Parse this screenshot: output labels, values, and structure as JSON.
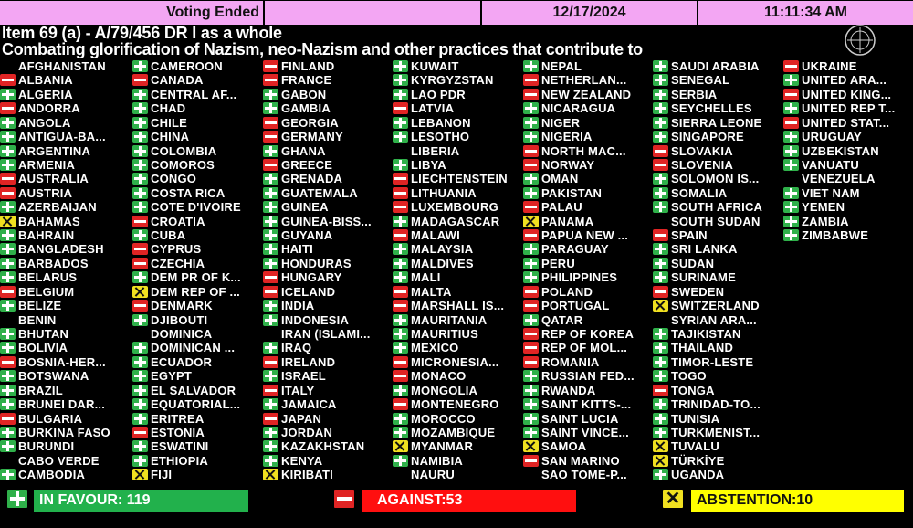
{
  "header": {
    "status": "Voting Ended",
    "empty": "",
    "date": "12/17/2024",
    "time": "11:11:34 AM",
    "bar_color": "#f3a6f3"
  },
  "item_title": "Item 69 (a) - A/79/456 DR I as a whole",
  "item_subtitle": "Combating glorification of Nazism, neo-Nazism and other practices that contribute to",
  "vote_legend": {
    "Y": "in-favour",
    "N": "against",
    "A": "abstention",
    "": "not-voting"
  },
  "colors": {
    "Y": "#2fb04a",
    "N": "#e02424",
    "A": "#f0e020"
  },
  "columns": [
    [
      [
        "AFGHANISTAN",
        ""
      ],
      [
        "ALBANIA",
        "N"
      ],
      [
        "ALGERIA",
        "Y"
      ],
      [
        "ANDORRA",
        "N"
      ],
      [
        "ANGOLA",
        "Y"
      ],
      [
        "ANTIGUA-BA...",
        "Y"
      ],
      [
        "ARGENTINA",
        "Y"
      ],
      [
        "ARMENIA",
        "Y"
      ],
      [
        "AUSTRALIA",
        "N"
      ],
      [
        "AUSTRIA",
        "N"
      ],
      [
        "AZERBAIJAN",
        "Y"
      ],
      [
        "BAHAMAS",
        "A"
      ],
      [
        "BAHRAIN",
        "Y"
      ],
      [
        "BANGLADESH",
        "Y"
      ],
      [
        "BARBADOS",
        "Y"
      ],
      [
        "BELARUS",
        "Y"
      ],
      [
        "BELGIUM",
        "N"
      ],
      [
        "BELIZE",
        "Y"
      ],
      [
        "BENIN",
        ""
      ],
      [
        "BHUTAN",
        "Y"
      ],
      [
        "BOLIVIA",
        "Y"
      ],
      [
        "BOSNIA-HER...",
        "N"
      ],
      [
        "BOTSWANA",
        "Y"
      ],
      [
        "BRAZIL",
        "Y"
      ],
      [
        "BRUNEI DAR...",
        "Y"
      ],
      [
        "BULGARIA",
        "N"
      ],
      [
        "BURKINA FASO",
        "Y"
      ],
      [
        "BURUNDI",
        "Y"
      ],
      [
        "CABO VERDE",
        ""
      ],
      [
        "CAMBODIA",
        "Y"
      ]
    ],
    [
      [
        "CAMEROON",
        "Y"
      ],
      [
        "CANADA",
        "N"
      ],
      [
        "CENTRAL AF...",
        "Y"
      ],
      [
        "CHAD",
        "Y"
      ],
      [
        "CHILE",
        "Y"
      ],
      [
        "CHINA",
        "Y"
      ],
      [
        "COLOMBIA",
        "Y"
      ],
      [
        "COMOROS",
        "Y"
      ],
      [
        "CONGO",
        "Y"
      ],
      [
        "COSTA RICA",
        "Y"
      ],
      [
        "COTE D'IVOIRE",
        "Y"
      ],
      [
        "CROATIA",
        "N"
      ],
      [
        "CUBA",
        "Y"
      ],
      [
        "CYPRUS",
        "N"
      ],
      [
        "CZECHIA",
        "N"
      ],
      [
        "DEM PR OF K...",
        "Y"
      ],
      [
        "DEM REP OF ...",
        "A"
      ],
      [
        "DENMARK",
        "N"
      ],
      [
        "DJIBOUTI",
        "Y"
      ],
      [
        "DOMINICA",
        ""
      ],
      [
        "DOMINICAN ...",
        "Y"
      ],
      [
        "ECUADOR",
        "Y"
      ],
      [
        "EGYPT",
        "Y"
      ],
      [
        "EL SALVADOR",
        "Y"
      ],
      [
        "EQUATORIAL...",
        "Y"
      ],
      [
        "ERITREA",
        "Y"
      ],
      [
        "ESTONIA",
        "N"
      ],
      [
        "ESWATINI",
        "Y"
      ],
      [
        "ETHIOPIA",
        "Y"
      ],
      [
        "FIJI",
        "A"
      ]
    ],
    [
      [
        "FINLAND",
        "N"
      ],
      [
        "FRANCE",
        "N"
      ],
      [
        "GABON",
        "Y"
      ],
      [
        "GAMBIA",
        "Y"
      ],
      [
        "GEORGIA",
        "N"
      ],
      [
        "GERMANY",
        "N"
      ],
      [
        "GHANA",
        "Y"
      ],
      [
        "GREECE",
        "N"
      ],
      [
        "GRENADA",
        "Y"
      ],
      [
        "GUATEMALA",
        "Y"
      ],
      [
        "GUINEA",
        "Y"
      ],
      [
        "GUINEA-BISS...",
        "Y"
      ],
      [
        "GUYANA",
        "Y"
      ],
      [
        "HAITI",
        "Y"
      ],
      [
        "HONDURAS",
        "Y"
      ],
      [
        "HUNGARY",
        "N"
      ],
      [
        "ICELAND",
        "N"
      ],
      [
        "INDIA",
        "Y"
      ],
      [
        "INDONESIA",
        "Y"
      ],
      [
        "IRAN (ISLAMI...",
        ""
      ],
      [
        "IRAQ",
        "Y"
      ],
      [
        "IRELAND",
        "N"
      ],
      [
        "ISRAEL",
        "Y"
      ],
      [
        "ITALY",
        "N"
      ],
      [
        "JAMAICA",
        "Y"
      ],
      [
        "JAPAN",
        "N"
      ],
      [
        "JORDAN",
        "Y"
      ],
      [
        "KAZAKHSTAN",
        "Y"
      ],
      [
        "KENYA",
        "Y"
      ],
      [
        "KIRIBATI",
        "A"
      ]
    ],
    [
      [
        "KUWAIT",
        "Y"
      ],
      [
        "KYRGYZSTAN",
        "Y"
      ],
      [
        "LAO PDR",
        "Y"
      ],
      [
        "LATVIA",
        "N"
      ],
      [
        "LEBANON",
        "Y"
      ],
      [
        "LESOTHO",
        "Y"
      ],
      [
        "LIBERIA",
        ""
      ],
      [
        "LIBYA",
        "Y"
      ],
      [
        "LIECHTENSTEIN",
        "N"
      ],
      [
        "LITHUANIA",
        "N"
      ],
      [
        "LUXEMBOURG",
        "N"
      ],
      [
        "MADAGASCAR",
        "Y"
      ],
      [
        "MALAWI",
        "N"
      ],
      [
        "MALAYSIA",
        "Y"
      ],
      [
        "MALDIVES",
        "Y"
      ],
      [
        "MALI",
        "Y"
      ],
      [
        "MALTA",
        "N"
      ],
      [
        "MARSHALL IS...",
        "N"
      ],
      [
        "MAURITANIA",
        "Y"
      ],
      [
        "MAURITIUS",
        "Y"
      ],
      [
        "MEXICO",
        "Y"
      ],
      [
        "MICRONESIA...",
        "N"
      ],
      [
        "MONACO",
        "N"
      ],
      [
        "MONGOLIA",
        "Y"
      ],
      [
        "MONTENEGRO",
        "N"
      ],
      [
        "MOROCCO",
        "Y"
      ],
      [
        "MOZAMBIQUE",
        "Y"
      ],
      [
        "MYANMAR",
        "A"
      ],
      [
        "NAMIBIA",
        "Y"
      ],
      [
        "NAURU",
        ""
      ]
    ],
    [
      [
        "NEPAL",
        "Y"
      ],
      [
        "NETHERLAN...",
        "N"
      ],
      [
        "NEW ZEALAND",
        "N"
      ],
      [
        "NICARAGUA",
        "Y"
      ],
      [
        "NIGER",
        "Y"
      ],
      [
        "NIGERIA",
        "Y"
      ],
      [
        "NORTH MAC...",
        "N"
      ],
      [
        "NORWAY",
        "N"
      ],
      [
        "OMAN",
        "Y"
      ],
      [
        "PAKISTAN",
        "Y"
      ],
      [
        "PALAU",
        "N"
      ],
      [
        "PANAMA",
        "A"
      ],
      [
        "PAPUA NEW ...",
        "N"
      ],
      [
        "PARAGUAY",
        "Y"
      ],
      [
        "PERU",
        "Y"
      ],
      [
        "PHILIPPINES",
        "Y"
      ],
      [
        "POLAND",
        "N"
      ],
      [
        "PORTUGAL",
        "N"
      ],
      [
        "QATAR",
        "Y"
      ],
      [
        "REP OF KOREA",
        "N"
      ],
      [
        "REP OF MOL...",
        "N"
      ],
      [
        "ROMANIA",
        "N"
      ],
      [
        "RUSSIAN FED...",
        "Y"
      ],
      [
        "RWANDA",
        "Y"
      ],
      [
        "SAINT KITTS-...",
        "Y"
      ],
      [
        "SAINT LUCIA",
        "Y"
      ],
      [
        "SAINT VINCE...",
        "Y"
      ],
      [
        "SAMOA",
        "A"
      ],
      [
        "SAN MARINO",
        "N"
      ],
      [
        "SAO TOME-P...",
        ""
      ]
    ],
    [
      [
        "SAUDI ARABIA",
        "Y"
      ],
      [
        "SENEGAL",
        "Y"
      ],
      [
        "SERBIA",
        "Y"
      ],
      [
        "SEYCHELLES",
        "Y"
      ],
      [
        "SIERRA LEONE",
        "Y"
      ],
      [
        "SINGAPORE",
        "Y"
      ],
      [
        "SLOVAKIA",
        "N"
      ],
      [
        "SLOVENIA",
        "N"
      ],
      [
        "SOLOMON IS...",
        "Y"
      ],
      [
        "SOMALIA",
        "Y"
      ],
      [
        "SOUTH AFRICA",
        "Y"
      ],
      [
        "SOUTH SUDAN",
        ""
      ],
      [
        "SPAIN",
        "N"
      ],
      [
        "SRI LANKA",
        "Y"
      ],
      [
        "SUDAN",
        "Y"
      ],
      [
        "SURINAME",
        "Y"
      ],
      [
        "SWEDEN",
        "N"
      ],
      [
        "SWITZERLAND",
        "A"
      ],
      [
        "SYRIAN ARA...",
        ""
      ],
      [
        "TAJIKISTAN",
        "Y"
      ],
      [
        "THAILAND",
        "Y"
      ],
      [
        "TIMOR-LESTE",
        "Y"
      ],
      [
        "TOGO",
        "Y"
      ],
      [
        "TONGA",
        "N"
      ],
      [
        "TRINIDAD-TO...",
        "Y"
      ],
      [
        "TUNISIA",
        "Y"
      ],
      [
        "TURKMENIST...",
        "Y"
      ],
      [
        "TUVALU",
        "A"
      ],
      [
        "TÜRKİYE",
        "A"
      ],
      [
        "UGANDA",
        "Y"
      ]
    ],
    [
      [
        "UKRAINE",
        "N"
      ],
      [
        "UNITED ARA...",
        "Y"
      ],
      [
        "UNITED KING...",
        "N"
      ],
      [
        "UNITED REP T...",
        "Y"
      ],
      [
        "UNITED STAT...",
        "N"
      ],
      [
        "URUGUAY",
        "Y"
      ],
      [
        "UZBEKISTAN",
        "Y"
      ],
      [
        "VANUATU",
        "Y"
      ],
      [
        "VENEZUELA",
        ""
      ],
      [
        "VIET NAM",
        "Y"
      ],
      [
        "YEMEN",
        "Y"
      ],
      [
        "ZAMBIA",
        "Y"
      ],
      [
        "ZIMBABWE",
        "Y"
      ]
    ]
  ],
  "totals": {
    "in_favour": "IN FAVOUR: 119",
    "against": "AGAINST:53",
    "abstention": "ABSTENTION:10"
  }
}
